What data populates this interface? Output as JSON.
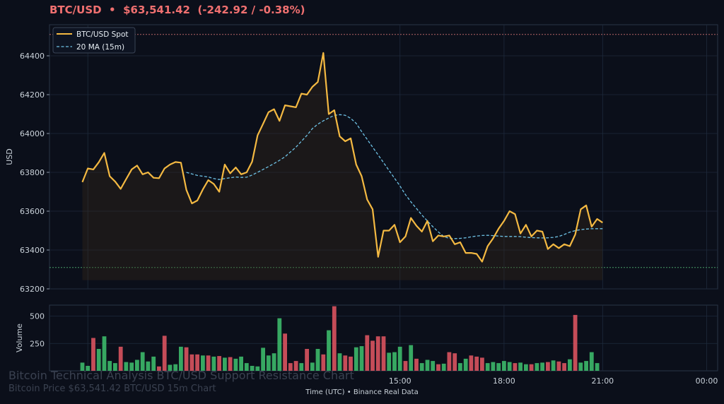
{
  "header": {
    "symbol": "BTC/USD",
    "separator": "•",
    "price": "$63,541.42",
    "change": "(-242.92 / -0.38%)"
  },
  "watermark": {
    "title": "Bitcoin Technical Analysis BTC/USD Support Resistance Chart",
    "subtitle": "Bitcoin Price $63,541.42 BTC/USD 15m Chart"
  },
  "xaxis_footer": {
    "label": "Time (UTC)",
    "separator": "•",
    "source": "Binance Real Data"
  },
  "colors": {
    "background": "#0b0f1a",
    "price_line": "#f4b942",
    "ma_line": "#6ec1e4",
    "resistance": "#e07a7a",
    "support": "#55c27a",
    "vol_up": "#3cb96a",
    "vol_down": "#d9535f",
    "grid": "#1e2a3c"
  },
  "chart_data": [
    {
      "type": "line",
      "ylabel": "USD",
      "ylim": [
        63200,
        64560
      ],
      "yticks": [
        63200,
        63400,
        63600,
        63800,
        64000,
        64200,
        64400
      ],
      "xlim": [
        -6,
        116
      ],
      "xtick_positions": [
        58,
        77,
        95
      ],
      "grid": true,
      "legend_position": "top-left",
      "resistance_level": 64510,
      "support_level": 63310,
      "series": [
        {
          "name": "BTC/USD Spot",
          "style": "solid",
          "values": [
            63750,
            63820,
            63815,
            63852,
            63900,
            63780,
            63752,
            63715,
            63765,
            63815,
            63835,
            63790,
            63800,
            63772,
            63770,
            63820,
            63840,
            63853,
            63850,
            63710,
            63640,
            63655,
            63712,
            63760,
            63740,
            63700,
            63840,
            63795,
            63825,
            63790,
            63800,
            63855,
            63990,
            64050,
            64110,
            64125,
            64065,
            64145,
            64140,
            64135,
            64205,
            64200,
            64240,
            64265,
            64415,
            64100,
            64120,
            63985,
            63960,
            63975,
            63840,
            63780,
            63660,
            63610,
            63365,
            63500,
            63500,
            63530,
            63440,
            63470,
            63565,
            63525,
            63495,
            63550,
            63445,
            63475,
            63470,
            63475,
            63430,
            63440,
            63385,
            63385,
            63380,
            63340,
            63420,
            63460,
            63510,
            63550,
            63600,
            63585,
            63485,
            63530,
            63470,
            63500,
            63495,
            63405,
            63430,
            63410,
            63430,
            63420,
            63480,
            63610,
            63630,
            63520,
            63560,
            63541
          ]
        },
        {
          "name": "20 MA (15m)",
          "style": "dashed",
          "start_index": 19,
          "values": [
            63800,
            63792,
            63784,
            63780,
            63776,
            63768,
            63763,
            63768,
            63772,
            63776,
            63774,
            63775,
            63786,
            63800,
            63815,
            63830,
            63845,
            63862,
            63880,
            63905,
            63930,
            63960,
            63990,
            64025,
            64048,
            64065,
            64080,
            64093,
            64097,
            64094,
            64078,
            64052,
            64010,
            63970,
            63930,
            63890,
            63850,
            63810,
            63770,
            63730,
            63685,
            63648,
            63614,
            63580,
            63550,
            63520,
            63493,
            63470,
            63460,
            63459,
            63460,
            63463,
            63468,
            63472,
            63475,
            63476,
            63474,
            63472,
            63470,
            63470,
            63470,
            63469,
            63466,
            63464,
            63463,
            63462,
            63463,
            63465,
            63470,
            63480,
            63492,
            63500,
            63505,
            63508,
            63510,
            63510,
            63510
          ]
        }
      ]
    },
    {
      "type": "bar",
      "ylabel": "Volume",
      "ylim": [
        0,
        600
      ],
      "yticks": [
        250,
        500
      ],
      "xtick_labels": [
        "15:00",
        "18:00",
        "21:00",
        "00:00"
      ],
      "xtick_positions": [
        58,
        77,
        95,
        114
      ],
      "up_color": "#3cb96a",
      "down_color": "#d9535f",
      "volumes": [
        75,
        45,
        300,
        200,
        315,
        90,
        70,
        220,
        80,
        75,
        100,
        170,
        85,
        130,
        40,
        320,
        55,
        60,
        220,
        215,
        150,
        150,
        140,
        140,
        130,
        135,
        120,
        125,
        110,
        130,
        70,
        45,
        40,
        210,
        140,
        160,
        480,
        340,
        70,
        90,
        70,
        200,
        75,
        200,
        150,
        370,
        590,
        160,
        140,
        130,
        215,
        225,
        325,
        275,
        315,
        315,
        165,
        170,
        220,
        90,
        235,
        110,
        70,
        100,
        90,
        60,
        65,
        170,
        160,
        70,
        110,
        140,
        130,
        120,
        70,
        80,
        70,
        90,
        80,
        70,
        75,
        60,
        60,
        70,
        75,
        80,
        95,
        85,
        70,
        105,
        510,
        75,
        90,
        170,
        70,
        0
      ],
      "directions": [
        1,
        1,
        0,
        1,
        1,
        1,
        1,
        0,
        1,
        1,
        1,
        1,
        1,
        1,
        0,
        0,
        1,
        1,
        1,
        0,
        0,
        0,
        1,
        0,
        1,
        0,
        1,
        0,
        1,
        1,
        1,
        1,
        1,
        1,
        1,
        1,
        1,
        0,
        0,
        0,
        1,
        0,
        1,
        1,
        0,
        1,
        0,
        1,
        0,
        0,
        1,
        1,
        0,
        0,
        0,
        0,
        1,
        1,
        1,
        0,
        1,
        0,
        1,
        1,
        1,
        0,
        1,
        0,
        0,
        1,
        1,
        0,
        0,
        0,
        1,
        1,
        1,
        1,
        1,
        0,
        1,
        1,
        0,
        1,
        1,
        0,
        1,
        0,
        0,
        1,
        0,
        1,
        1,
        1,
        1,
        0
      ]
    }
  ]
}
